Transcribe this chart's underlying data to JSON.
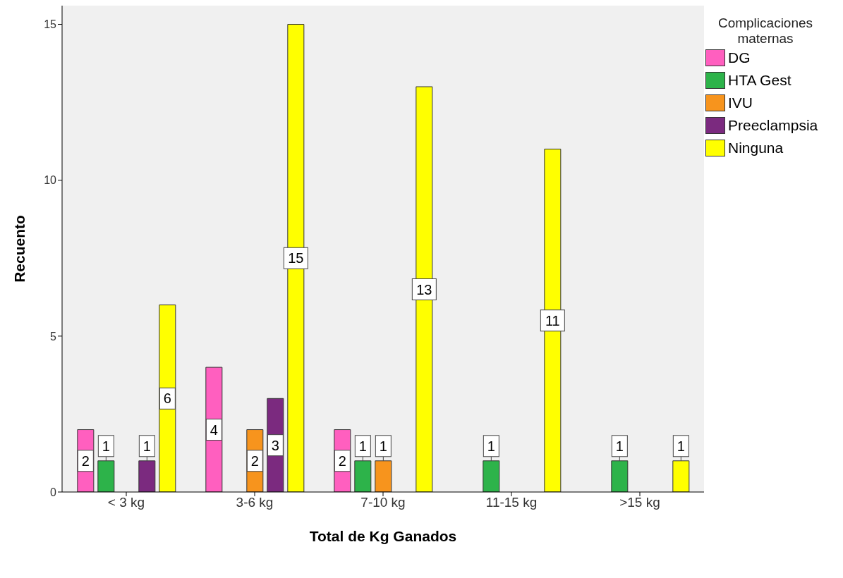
{
  "chart_data": {
    "type": "bar",
    "xlabel": "Total de Kg Ganados",
    "ylabel": "Recuento",
    "legend_title": "Complicaciones maternas",
    "categories": [
      "< 3 kg",
      "3-6 kg",
      "7-10 kg",
      "11-15 kg",
      ">15 kg"
    ],
    "series": [
      {
        "name": "DG",
        "color": "#ff5fbf",
        "values": [
          2,
          4,
          2,
          null,
          null
        ]
      },
      {
        "name": "HTA Gest",
        "color": "#2db34a",
        "values": [
          1,
          null,
          1,
          1,
          1
        ]
      },
      {
        "name": "IVU",
        "color": "#f7941d",
        "values": [
          null,
          2,
          1,
          null,
          null
        ]
      },
      {
        "name": "Preeclampsia",
        "color": "#7b2a7f",
        "values": [
          1,
          3,
          null,
          null,
          null
        ]
      },
      {
        "name": "Ninguna",
        "color": "#ffff00",
        "values": [
          6,
          15,
          13,
          11,
          1
        ]
      }
    ],
    "ylim": [
      0,
      15.6
    ],
    "yticks": [
      0,
      5,
      10,
      15
    ],
    "legend": "top right",
    "data_labels": true
  }
}
